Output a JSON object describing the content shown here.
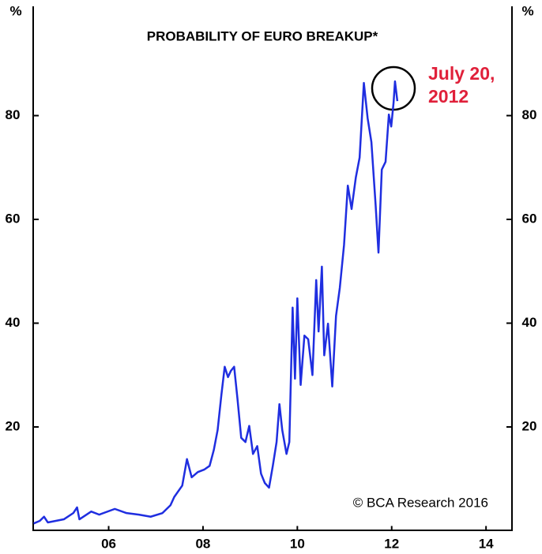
{
  "chart_data": {
    "type": "line",
    "title": "PROBABILITY OF EURO BREAKUP*",
    "ylabel": "%",
    "y2label": "%",
    "annotation_lines": [
      "July 20,",
      "2012"
    ],
    "source": "© BCA Research 2016",
    "xlim": [
      2004.4,
      2014.55
    ],
    "xticks": [
      {
        "value": 2006,
        "label": "06"
      },
      {
        "value": 2008,
        "label": "08"
      },
      {
        "value": 2010,
        "label": "10"
      },
      {
        "value": 2012,
        "label": "12"
      },
      {
        "value": 2014,
        "label": "14"
      }
    ],
    "ylim": [
      0,
      100
    ],
    "yticks": [
      20,
      40,
      60,
      80
    ],
    "y2lim": [
      0,
      100
    ],
    "y2ticks": [
      20,
      40,
      60,
      80
    ],
    "x": [
      2004.41,
      2004.54,
      2004.63,
      2004.71,
      2005.05,
      2005.25,
      2005.33,
      2005.38,
      2005.63,
      2005.8,
      2006.13,
      2006.38,
      2006.64,
      2006.89,
      2007.14,
      2007.31,
      2007.39,
      2007.56,
      2007.66,
      2007.76,
      2007.89,
      2008.03,
      2008.14,
      2008.23,
      2008.31,
      2008.39,
      2008.46,
      2008.53,
      2008.59,
      2008.66,
      2008.73,
      2008.81,
      2008.9,
      2008.98,
      2009.06,
      2009.15,
      2009.23,
      2009.31,
      2009.4,
      2009.48,
      2009.56,
      2009.62,
      2009.68,
      2009.77,
      2009.83,
      2009.9,
      2009.95,
      2010.0,
      2010.07,
      2010.15,
      2010.23,
      2010.32,
      2010.4,
      2010.45,
      2010.52,
      2010.57,
      2010.65,
      2010.74,
      2010.82,
      2010.9,
      2010.99,
      2011.07,
      2011.15,
      2011.24,
      2011.32,
      2011.41,
      2011.49,
      2011.57,
      2011.66,
      2011.72,
      2011.79,
      2011.87,
      2011.94,
      2011.99,
      2012.04,
      2012.07,
      2012.12
    ],
    "series": [
      {
        "color": "#1f2ee0",
        "values": [
          1.4,
          1.9,
          2.7,
          1.6,
          2.2,
          3.4,
          4.5,
          2.2,
          3.7,
          3.1,
          4.2,
          3.4,
          3.1,
          2.7,
          3.4,
          4.9,
          6.5,
          8.7,
          13.8,
          10.3,
          11.3,
          11.8,
          12.5,
          15.6,
          19.4,
          26.2,
          31.6,
          29.6,
          30.8,
          31.6,
          25.5,
          17.9,
          17.1,
          20.2,
          14.8,
          16.3,
          11.0,
          9.2,
          8.3,
          12.5,
          17.1,
          24.4,
          19.4,
          14.8,
          17.1,
          43.0,
          29.3,
          44.8,
          28.1,
          37.6,
          36.9,
          30.0,
          48.3,
          38.4,
          50.9,
          33.8,
          39.9,
          27.8,
          41.4,
          46.8,
          55.1,
          66.5,
          62.0,
          68.1,
          71.9,
          86.3,
          79.5,
          74.9,
          62.7,
          53.6,
          69.6,
          71.1,
          80.2,
          77.9,
          82.5,
          86.6,
          82.8
        ]
      }
    ]
  }
}
